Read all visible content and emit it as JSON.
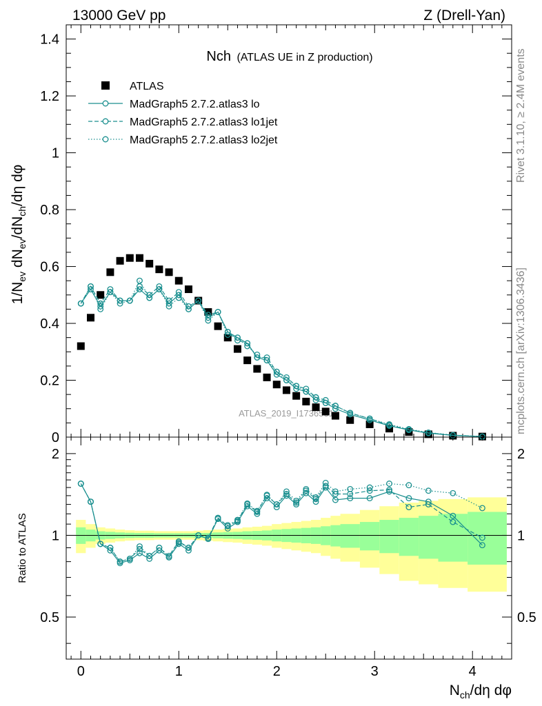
{
  "header": {
    "left": "13000 GeV pp",
    "right": "Z (Drell-Yan)"
  },
  "plot_title": {
    "main": "Nch",
    "sub": "(ATLAS UE in Z production)"
  },
  "watermark": "ATLAS_2019_I1736531",
  "side_text": {
    "top": "Rivet 3.1.10, ≥ 2.4M events",
    "bottom": "mcplots.cern.ch [arXiv:1306.3436]"
  },
  "colors": {
    "data": "#000000",
    "mc": "#1a8f8f",
    "band_inner": "#99ff99",
    "band_outer": "#ffff99"
  },
  "chart_data": [
    {
      "type": "scatter",
      "panel": "main",
      "ylabel_parts": [
        "1/N",
        "ev",
        " dN",
        "ev",
        "/dN",
        "ch",
        "/dη dφ"
      ],
      "xlim": [
        -0.15,
        4.4
      ],
      "ylim": [
        0,
        1.45
      ],
      "yticks": [
        0,
        0.2,
        0.4,
        0.6,
        0.8,
        1,
        1.2,
        1.4
      ],
      "yticklabels": [
        "0",
        "0.2",
        "0.4",
        "0.6",
        "0.8",
        "1",
        "1.2",
        "1.4"
      ],
      "legend_position": "top-left",
      "x": [
        0.0,
        0.1,
        0.2,
        0.3,
        0.4,
        0.5,
        0.6,
        0.7,
        0.8,
        0.9,
        1.0,
        1.1,
        1.2,
        1.3,
        1.4,
        1.5,
        1.6,
        1.7,
        1.8,
        1.9,
        2.0,
        2.1,
        2.2,
        2.3,
        2.4,
        2.5,
        2.6,
        2.75,
        2.95,
        3.15,
        3.35,
        3.55,
        3.8,
        4.1
      ],
      "series": [
        {
          "name": "ATLAS",
          "style": "data",
          "values": [
            0.32,
            0.42,
            0.5,
            0.58,
            0.62,
            0.63,
            0.63,
            0.61,
            0.59,
            0.58,
            0.55,
            0.52,
            0.48,
            0.44,
            0.39,
            0.35,
            0.31,
            0.27,
            0.24,
            0.21,
            0.185,
            0.165,
            0.145,
            0.125,
            0.105,
            0.09,
            0.075,
            0.06,
            0.045,
            0.03,
            0.018,
            0.01,
            0.005,
            0.002
          ]
        },
        {
          "name": "MadGraph5 2.7.2.atlas3 lo",
          "style": "solid",
          "values": [
            0.47,
            0.52,
            0.46,
            0.51,
            0.48,
            0.48,
            0.52,
            0.49,
            0.52,
            0.47,
            0.5,
            0.45,
            0.48,
            0.42,
            0.44,
            0.37,
            0.35,
            0.33,
            0.28,
            0.27,
            0.22,
            0.2,
            0.17,
            0.16,
            0.13,
            0.12,
            0.1,
            0.08,
            0.06,
            0.04,
            0.025,
            0.014,
            0.006,
            0.002
          ]
        },
        {
          "name": "MadGraph5 2.7.2.atlas3 lo1jet",
          "style": "dashed",
          "values": [
            0.47,
            0.53,
            0.47,
            0.52,
            0.48,
            0.48,
            0.53,
            0.5,
            0.53,
            0.48,
            0.51,
            0.46,
            0.48,
            0.43,
            0.44,
            0.37,
            0.34,
            0.33,
            0.28,
            0.28,
            0.23,
            0.21,
            0.18,
            0.17,
            0.14,
            0.13,
            0.11,
            0.085,
            0.065,
            0.042,
            0.026,
            0.015,
            0.007,
            0.002
          ]
        },
        {
          "name": "MadGraph5 2.7.2.atlas3 lo2jet",
          "style": "dotted",
          "values": [
            0.47,
            0.53,
            0.45,
            0.51,
            0.47,
            0.48,
            0.55,
            0.49,
            0.52,
            0.46,
            0.49,
            0.45,
            0.48,
            0.41,
            0.44,
            0.36,
            0.35,
            0.32,
            0.29,
            0.27,
            0.23,
            0.2,
            0.18,
            0.16,
            0.14,
            0.12,
            0.11,
            0.085,
            0.065,
            0.045,
            0.028,
            0.016,
            0.007,
            0.002
          ]
        }
      ]
    },
    {
      "type": "line",
      "panel": "ratio",
      "ylabel": "Ratio to ATLAS",
      "xlabel_parts": [
        "N",
        "ch",
        "/dη dφ"
      ],
      "xlim": [
        -0.15,
        4.4
      ],
      "ylim": [
        0.35,
        2.3
      ],
      "log_y": true,
      "xticks": [
        0,
        1,
        2,
        3,
        4
      ],
      "xticklabels": [
        "0",
        "1",
        "2",
        "3",
        "4"
      ],
      "yticks": [
        0.5,
        1,
        2
      ],
      "yticklabels": [
        "0.5",
        "1",
        "2"
      ],
      "x": [
        0.0,
        0.1,
        0.2,
        0.3,
        0.4,
        0.5,
        0.6,
        0.7,
        0.8,
        0.9,
        1.0,
        1.1,
        1.2,
        1.3,
        1.4,
        1.5,
        1.6,
        1.7,
        1.8,
        1.9,
        2.0,
        2.1,
        2.2,
        2.3,
        2.4,
        2.5,
        2.6,
        2.75,
        2.95,
        3.15,
        3.35,
        3.55,
        3.8,
        4.1
      ],
      "series": [
        {
          "name": "MadGraph5 2.7.2.atlas3 lo",
          "style": "solid",
          "values": [
            1.55,
            1.33,
            0.93,
            0.88,
            0.79,
            0.81,
            0.86,
            0.82,
            0.88,
            0.83,
            0.93,
            0.88,
            1.0,
            0.97,
            1.15,
            1.06,
            1.12,
            1.28,
            1.2,
            1.37,
            1.27,
            1.4,
            1.3,
            1.43,
            1.33,
            1.5,
            1.35,
            1.37,
            1.37,
            1.45,
            1.37,
            1.33,
            1.18,
            0.92
          ]
        },
        {
          "name": "MadGraph5 2.7.2.atlas3 lo1jet",
          "style": "dashed",
          "values": [
            1.55,
            1.33,
            0.93,
            0.9,
            0.8,
            0.82,
            0.89,
            0.84,
            0.9,
            0.84,
            0.95,
            0.9,
            1.0,
            0.98,
            1.16,
            1.08,
            1.13,
            1.3,
            1.22,
            1.4,
            1.3,
            1.42,
            1.32,
            1.46,
            1.36,
            1.52,
            1.42,
            1.42,
            1.46,
            1.47,
            1.27,
            1.3,
            1.12,
            0.98
          ]
        },
        {
          "name": "MadGraph5 2.7.2.atlas3 lo2jet",
          "style": "dotted",
          "values": [
            1.55,
            1.33,
            0.93,
            0.9,
            0.8,
            0.82,
            0.91,
            0.84,
            0.9,
            0.83,
            0.94,
            0.9,
            1.0,
            0.97,
            1.15,
            1.09,
            1.14,
            1.31,
            1.23,
            1.41,
            1.3,
            1.45,
            1.34,
            1.48,
            1.38,
            1.56,
            1.45,
            1.48,
            1.5,
            1.55,
            1.53,
            1.46,
            1.43,
            1.26
          ]
        }
      ],
      "bands": {
        "bins_low": [
          -0.05,
          0.05,
          0.15,
          0.25,
          0.35,
          0.45,
          0.55,
          0.65,
          0.75,
          0.85,
          0.95,
          1.05,
          1.15,
          1.25,
          1.35,
          1.45,
          1.55,
          1.65,
          1.75,
          1.85,
          1.95,
          2.05,
          2.15,
          2.25,
          2.35,
          2.45,
          2.55,
          2.65,
          2.85,
          3.05,
          3.25,
          3.45,
          3.65,
          3.95
        ],
        "bins_high": [
          0.05,
          0.15,
          0.25,
          0.35,
          0.45,
          0.55,
          0.65,
          0.75,
          0.85,
          0.95,
          1.05,
          1.15,
          1.25,
          1.35,
          1.45,
          1.55,
          1.65,
          1.75,
          1.85,
          1.95,
          2.05,
          2.15,
          2.25,
          2.35,
          2.45,
          2.55,
          2.65,
          2.85,
          3.05,
          3.25,
          3.45,
          3.65,
          3.95,
          4.35
        ],
        "inner_half_width": [
          0.07,
          0.05,
          0.035,
          0.03,
          0.025,
          0.022,
          0.02,
          0.02,
          0.018,
          0.018,
          0.018,
          0.018,
          0.02,
          0.02,
          0.025,
          0.028,
          0.03,
          0.035,
          0.038,
          0.042,
          0.05,
          0.055,
          0.06,
          0.065,
          0.07,
          0.08,
          0.09,
          0.1,
          0.12,
          0.14,
          0.16,
          0.18,
          0.2,
          0.22
        ],
        "outer_half_width": [
          0.14,
          0.1,
          0.07,
          0.06,
          0.05,
          0.044,
          0.04,
          0.04,
          0.036,
          0.036,
          0.036,
          0.036,
          0.04,
          0.045,
          0.05,
          0.056,
          0.06,
          0.07,
          0.076,
          0.084,
          0.1,
          0.11,
          0.12,
          0.13,
          0.14,
          0.16,
          0.18,
          0.2,
          0.24,
          0.28,
          0.32,
          0.34,
          0.36,
          0.38
        ]
      }
    }
  ]
}
